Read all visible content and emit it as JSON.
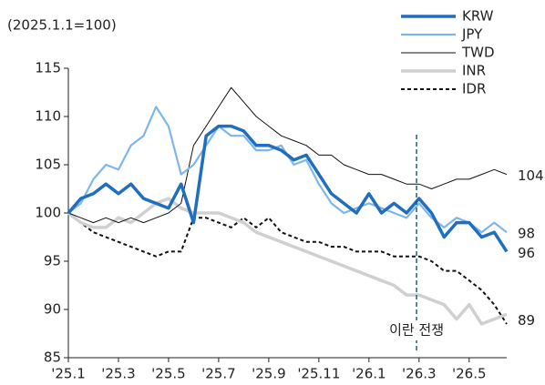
{
  "chart_data": {
    "type": "line",
    "subtitle": "(2025.1.1=100)",
    "x": [
      0,
      0.5,
      1,
      1.5,
      2,
      2.5,
      3,
      3.5,
      4,
      4.5,
      5,
      5.5,
      6,
      6.5,
      7,
      7.5,
      8,
      8.5,
      9,
      9.5,
      10,
      10.5,
      11,
      11.5,
      12,
      12.5,
      13,
      13.5,
      14,
      14.5,
      15,
      15.5,
      16,
      16.5,
      17,
      17.5
    ],
    "xlim": [
      0,
      17.5
    ],
    "xticks": [
      {
        "value": 0,
        "label": "'25.1"
      },
      {
        "value": 2,
        "label": "'25.3"
      },
      {
        "value": 4,
        "label": "'25.5"
      },
      {
        "value": 6,
        "label": "'25.7"
      },
      {
        "value": 8,
        "label": "'25.9"
      },
      {
        "value": 10,
        "label": "'25.11"
      },
      {
        "value": 12,
        "label": "'26.1"
      },
      {
        "value": 14,
        "label": "'26.3"
      },
      {
        "value": 16,
        "label": "'26.5"
      }
    ],
    "ylim": [
      85,
      115
    ],
    "yticks": [
      85,
      90,
      95,
      100,
      105,
      110,
      115
    ],
    "grid": false,
    "legend": "top-right",
    "series": [
      {
        "name": "KRW",
        "color": "#1f6fc0",
        "width": 3.5,
        "dash": "none",
        "values": [
          100,
          101.5,
          102,
          103,
          102,
          103,
          101.5,
          101,
          100.5,
          103,
          99,
          108,
          109,
          109,
          108.5,
          107,
          107,
          106.5,
          105.5,
          106,
          104,
          102,
          101,
          100,
          102,
          100,
          101,
          100,
          101.5,
          100,
          97.5,
          99,
          99,
          97.5,
          98,
          96
        ]
      },
      {
        "name": "JPY",
        "color": "#7fb6ea",
        "width": 2.2,
        "dash": "none",
        "values": [
          100,
          101,
          103.5,
          105,
          104.5,
          107,
          108,
          111,
          109,
          104,
          105,
          107,
          109,
          108,
          108,
          106.5,
          106.5,
          107,
          105,
          105.5,
          103,
          101,
          100,
          100.5,
          101,
          100.5,
          100,
          99.5,
          101,
          99.5,
          98.5,
          99.5,
          99,
          98,
          99,
          98
        ]
      },
      {
        "name": "TWD",
        "color": "#111111",
        "width": 1,
        "dash": "none",
        "values": [
          100,
          99.5,
          99,
          99.5,
          99,
          99.5,
          99,
          99.5,
          100,
          101,
          107,
          109,
          111,
          113,
          111.5,
          110,
          109,
          108,
          107.5,
          107,
          106,
          106,
          105,
          104.5,
          104,
          104,
          103.5,
          103,
          103,
          102.5,
          103,
          103.5,
          103.5,
          104,
          104.5,
          104
        ]
      },
      {
        "name": "INR",
        "color": "#d0d0d0",
        "width": 3.5,
        "dash": "none",
        "values": [
          100,
          99,
          98.5,
          98.5,
          99.5,
          99,
          100,
          101,
          101.5,
          100.5,
          100,
          100,
          100,
          99.5,
          99,
          98,
          97.5,
          97,
          96.5,
          96,
          95.5,
          95,
          94.5,
          94,
          93.5,
          93,
          92.5,
          91.5,
          91.5,
          91,
          90.5,
          89,
          90.5,
          88.5,
          89,
          89.5
        ]
      },
      {
        "name": "IDR",
        "color": "#111111",
        "width": 2,
        "dash": "4 3",
        "values": [
          100,
          99,
          98,
          97.5,
          97,
          96.5,
          96,
          95.5,
          96,
          96,
          99.5,
          99.5,
          99,
          98.5,
          99.5,
          98.5,
          99.5,
          98,
          97.5,
          97,
          97,
          96.5,
          96.5,
          96,
          96,
          96,
          95.5,
          95.5,
          95.5,
          95,
          94,
          94,
          93,
          92,
          90.5,
          88.5
        ]
      }
    ],
    "end_labels": [
      104,
      98,
      96,
      89
    ],
    "event": {
      "x": 13.9,
      "label": "이란 전쟁",
      "color": "#1f5f7a"
    }
  }
}
